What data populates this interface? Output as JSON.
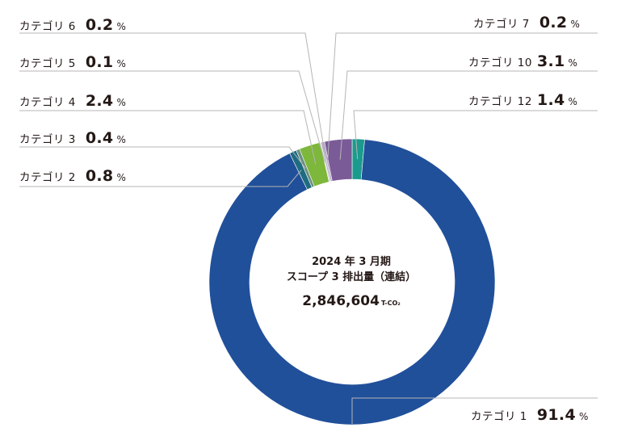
{
  "center": {
    "line1": "2024 年 3 月期",
    "line2": "スコープ 3 排出量（連結）",
    "total": "2,846,604",
    "unit": "T-CO₂"
  },
  "chart_data": {
    "type": "pie",
    "donut": true,
    "slices": [
      {
        "label": "カテゴリ 12",
        "value": 1.4,
        "display": "1.4",
        "color": "#1a9b8e"
      },
      {
        "label": "カテゴリ 1",
        "value": 91.4,
        "display": "91.4",
        "color": "#21509a"
      },
      {
        "label": "カテゴリ 2",
        "value": 0.8,
        "display": "0.8",
        "color": "#1f6b80"
      },
      {
        "label": "カテゴリ 3",
        "value": 0.4,
        "display": "0.4",
        "color": "#6a8f82"
      },
      {
        "label": "カテゴリ 4",
        "value": 2.4,
        "display": "2.4",
        "color": "#7db73b"
      },
      {
        "label": "カテゴリ 5",
        "value": 0.1,
        "display": "0.1",
        "color": "#b9c98e"
      },
      {
        "label": "カテゴリ 6",
        "value": 0.2,
        "display": "0.2",
        "color": "#b7a7c5"
      },
      {
        "label": "カテゴリ 7",
        "value": 0.2,
        "display": "0.2",
        "color": "#a999c0"
      },
      {
        "label": "カテゴリ 10",
        "value": 3.1,
        "display": "3.1",
        "color": "#7a5b97"
      }
    ],
    "percent_sign": "%"
  }
}
